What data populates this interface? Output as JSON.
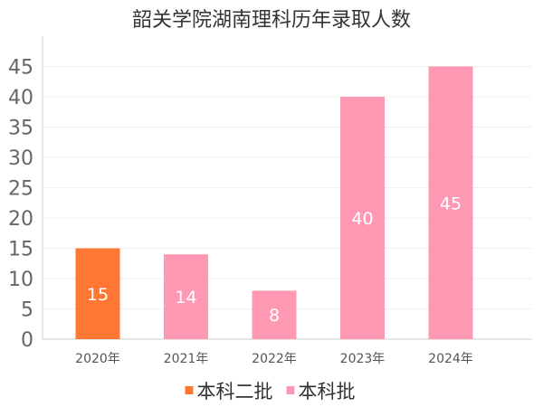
{
  "chart_data": {
    "type": "bar",
    "title": "韶关学院湖南理科历年录取人数",
    "categories": [
      "2020年",
      "2021年",
      "2022年",
      "2023年",
      "2024年"
    ],
    "values": [
      15,
      14,
      8,
      40,
      45
    ],
    "bar_series": [
      0,
      1,
      1,
      1,
      1
    ],
    "series": [
      {
        "name": "本科二批",
        "color": "#ff7733"
      },
      {
        "name": "本科批",
        "color": "#ff99b3"
      }
    ],
    "yticks": [
      0,
      5,
      10,
      15,
      20,
      25,
      30,
      35,
      40,
      45
    ],
    "ylim": [
      0,
      50
    ],
    "xlabel": "",
    "ylabel": "",
    "legend_position": "bottom",
    "grid": true
  }
}
